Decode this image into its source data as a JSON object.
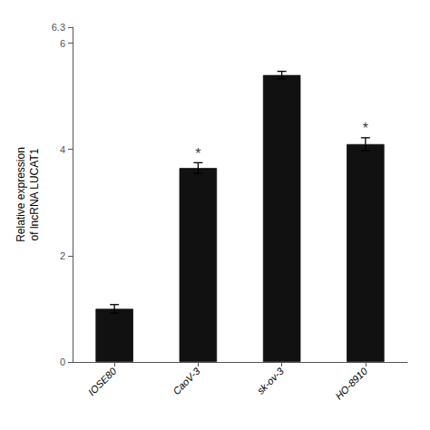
{
  "chart_data": {
    "type": "bar",
    "categories": [
      "IOSE80",
      "CaoV-3",
      "sk-ov-3",
      "HO-8910"
    ],
    "values": [
      1.0,
      3.65,
      5.4,
      4.1
    ],
    "errors": [
      0.08,
      0.1,
      0.07,
      0.12
    ],
    "color": "#111111",
    "ylabel": "Relative expression\nof lncRNA LUCAT1",
    "ylim": [
      0,
      6.3
    ],
    "yticks": [
      0,
      2,
      4,
      6
    ],
    "grid": false,
    "annotations": [
      {
        "category": "CaoV-3",
        "text": "*"
      },
      {
        "category": "HO-8910",
        "text": "*"
      }
    ]
  }
}
